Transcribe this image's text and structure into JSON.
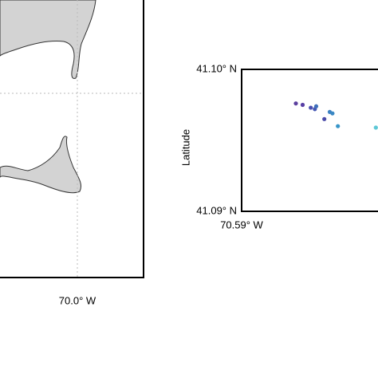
{
  "map": {
    "xticks": [
      {
        "value": -70.0,
        "label": "70.0° W"
      }
    ]
  },
  "chart_data": {
    "type": "scatter",
    "ylabel": "Latitude",
    "x": [
      -70.586,
      -70.5855,
      -70.5849,
      -70.5846,
      -70.5845,
      -70.5839,
      -70.5835,
      -70.5833,
      -70.5829,
      -70.5801
    ],
    "values": [
      41.0976,
      41.0975,
      41.0973,
      41.0972,
      41.0974,
      41.0965,
      41.097,
      41.0969,
      41.096,
      41.0959
    ],
    "colors": [
      "#5b3f9e",
      "#583fa5",
      "#4a4fb0",
      "#4658b4",
      "#3f6fba",
      "#4a4aa8",
      "#3d82c2",
      "#3a88c4",
      "#3795c8",
      "#5ec8d6"
    ],
    "xlim": [
      -70.59,
      -70.58
    ],
    "ylim": [
      41.09,
      41.1
    ],
    "xticks": [
      {
        "value": -70.59,
        "label": "70.59° W"
      }
    ],
    "yticks": [
      {
        "value": 41.09,
        "label": "41.09° N"
      },
      {
        "value": 41.1,
        "label": "41.10° N"
      }
    ]
  }
}
